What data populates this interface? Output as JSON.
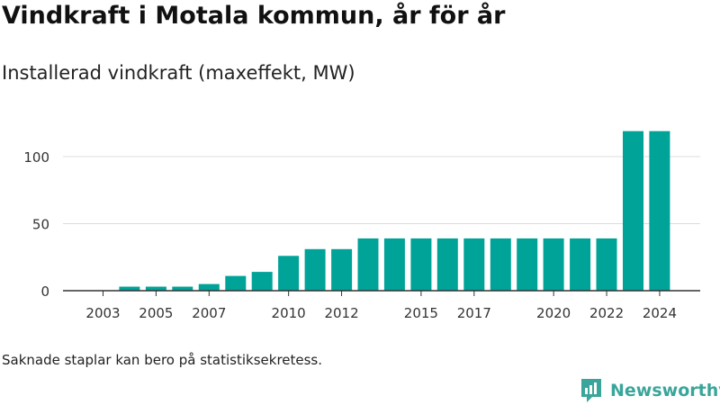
{
  "header": {
    "title": "Vindkraft i Motala kommun, år för år",
    "subtitle": "Installerad vindkraft (maxeffekt, MW)"
  },
  "footer": {
    "note": "Saknade staplar kan bero på statistiksekretess.",
    "brand": "Newsworthy",
    "brand_icon": "newsworthy-logo-icon"
  },
  "colors": {
    "bar": "#00a398",
    "grid": "#dcdcdc",
    "axis": "#333333",
    "brand": "#3aa59a"
  },
  "chart_data": {
    "type": "bar",
    "title": "",
    "xlabel": "",
    "ylabel": "",
    "categories": [
      "2003",
      "2004",
      "2005",
      "2006",
      "2007",
      "2008",
      "2009",
      "2010",
      "2011",
      "2012",
      "2013",
      "2014",
      "2015",
      "2016",
      "2017",
      "2018",
      "2019",
      "2020",
      "2021",
      "2022",
      "2023",
      "2024"
    ],
    "values": [
      null,
      3,
      3,
      3,
      5,
      11,
      14,
      26,
      31,
      31,
      39,
      39,
      39,
      39,
      39,
      39,
      39,
      39,
      39,
      39,
      119,
      119
    ],
    "x_tick_labels": [
      "2003",
      "2005",
      "2007",
      "2010",
      "2012",
      "2015",
      "2017",
      "2020",
      "2022",
      "2024"
    ],
    "y_ticks": [
      0,
      50,
      100
    ],
    "ylim": [
      0,
      120
    ],
    "grid": true
  }
}
